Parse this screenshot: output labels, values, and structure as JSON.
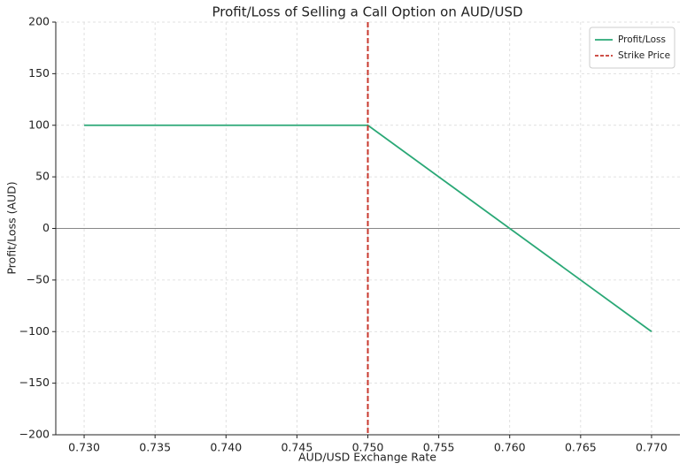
{
  "chart_data": {
    "type": "line",
    "title": "Profit/Loss of Selling a Call Option on AUD/USD",
    "xlabel": "AUD/USD Exchange Rate",
    "ylabel": "Profit/Loss (AUD)",
    "x": [
      0.73,
      0.75,
      0.77
    ],
    "series": [
      {
        "name": "Profit/Loss",
        "color": "#2aa876",
        "values": [
          100,
          100,
          -100
        ]
      }
    ],
    "vlines": [
      {
        "name": "Strike Price",
        "x": 0.75,
        "color": "#c8382e",
        "style": "dashed"
      }
    ],
    "hline": {
      "value": 0,
      "color": "#888888"
    },
    "xlim": [
      0.728,
      0.772
    ],
    "ylim": [
      -200,
      200
    ],
    "xticks": [
      {
        "value": 0.73,
        "label": "0.730"
      },
      {
        "value": 0.735,
        "label": "0.735"
      },
      {
        "value": 0.74,
        "label": "0.740"
      },
      {
        "value": 0.745,
        "label": "0.745"
      },
      {
        "value": 0.75,
        "label": "0.750"
      },
      {
        "value": 0.755,
        "label": "0.755"
      },
      {
        "value": 0.76,
        "label": "0.760"
      },
      {
        "value": 0.765,
        "label": "0.765"
      },
      {
        "value": 0.77,
        "label": "0.770"
      }
    ],
    "yticks": [
      {
        "value": -200,
        "label": "−200"
      },
      {
        "value": -150,
        "label": "−150"
      },
      {
        "value": -100,
        "label": "−100"
      },
      {
        "value": -50,
        "label": "−50"
      },
      0,
      50,
      100,
      150,
      200
    ],
    "grid": true,
    "legend": "upper right"
  }
}
